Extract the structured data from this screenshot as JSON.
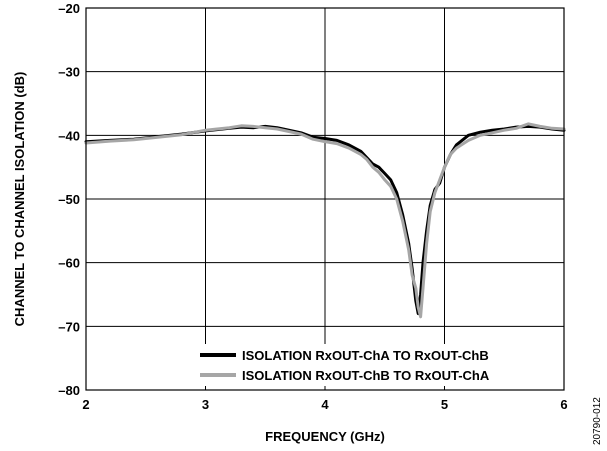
{
  "figure_id": "20790-012",
  "chart_data": {
    "type": "line",
    "title": "",
    "xlabel": "FREQUENCY (GHz)",
    "ylabel": "CHANNEL TO CHANNEL ISOLATION (dB)",
    "xlim": [
      2,
      6
    ],
    "ylim": [
      -80,
      -20
    ],
    "x_ticks": [
      2,
      3,
      4,
      5,
      6
    ],
    "y_ticks": [
      -20,
      -30,
      -40,
      -50,
      -60,
      -70,
      -80
    ],
    "x_tick_labels": [
      "2",
      "3",
      "4",
      "5",
      "6"
    ],
    "y_tick_labels": [
      "–20",
      "–30",
      "–40",
      "–50",
      "–60",
      "–70",
      "–80"
    ],
    "grid": true,
    "legend_position": "bottom-right",
    "series": [
      {
        "name": "ISOLATION RxOUT-ChA TO RxOUT-ChB",
        "color": "#000000",
        "x": [
          2.0,
          2.2,
          2.4,
          2.6,
          2.8,
          3.0,
          3.2,
          3.3,
          3.4,
          3.5,
          3.6,
          3.8,
          3.9,
          4.0,
          4.1,
          4.2,
          4.3,
          4.35,
          4.4,
          4.45,
          4.5,
          4.55,
          4.6,
          4.65,
          4.7,
          4.73,
          4.76,
          4.78,
          4.8,
          4.82,
          4.85,
          4.88,
          4.92,
          4.96,
          5.0,
          5.05,
          5.1,
          5.2,
          5.3,
          5.4,
          5.5,
          5.6,
          5.7,
          5.8,
          5.9,
          6.0
        ],
        "y": [
          -41.0,
          -40.8,
          -40.6,
          -40.2,
          -39.8,
          -39.3,
          -38.9,
          -38.7,
          -38.8,
          -38.6,
          -38.8,
          -39.6,
          -40.3,
          -40.5,
          -40.8,
          -41.5,
          -42.5,
          -43.5,
          -44.5,
          -45.0,
          -46.0,
          -47.0,
          -49.0,
          -52.5,
          -57.0,
          -61.0,
          -66.0,
          -68.0,
          -65.0,
          -60.0,
          -55.0,
          -51.0,
          -48.5,
          -47.5,
          -45.0,
          -43.0,
          -41.5,
          -40.0,
          -39.5,
          -39.2,
          -39.0,
          -38.7,
          -38.6,
          -38.7,
          -39.0,
          -39.2
        ]
      },
      {
        "name": "ISOLATION RxOUT-ChB TO RxOUT-ChA",
        "color": "#a6a6a6",
        "x": [
          2.0,
          2.2,
          2.4,
          2.6,
          2.8,
          3.0,
          3.2,
          3.3,
          3.4,
          3.5,
          3.6,
          3.8,
          3.9,
          4.0,
          4.1,
          4.2,
          4.3,
          4.35,
          4.4,
          4.45,
          4.5,
          4.55,
          4.6,
          4.65,
          4.7,
          4.73,
          4.76,
          4.78,
          4.8,
          4.82,
          4.85,
          4.88,
          4.92,
          4.96,
          5.0,
          5.05,
          5.1,
          5.2,
          5.3,
          5.4,
          5.5,
          5.6,
          5.7,
          5.8,
          5.9,
          6.0
        ],
        "y": [
          -41.2,
          -40.9,
          -40.7,
          -40.3,
          -39.9,
          -39.2,
          -38.8,
          -38.5,
          -38.6,
          -38.8,
          -39.0,
          -39.8,
          -40.6,
          -41.0,
          -41.3,
          -42.0,
          -43.0,
          -43.8,
          -45.0,
          -45.8,
          -47.0,
          -48.0,
          -50.0,
          -53.5,
          -58.0,
          -62.0,
          -64.0,
          -67.0,
          -68.5,
          -64.0,
          -57.0,
          -52.0,
          -49.0,
          -47.0,
          -45.0,
          -43.0,
          -42.0,
          -40.8,
          -40.0,
          -39.6,
          -39.2,
          -38.9,
          -38.2,
          -38.6,
          -38.9,
          -39.0
        ]
      }
    ]
  }
}
